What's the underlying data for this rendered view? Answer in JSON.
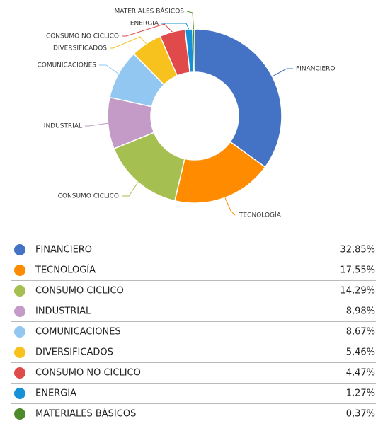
{
  "chart_data": {
    "type": "donut",
    "categories": [
      "FINANCIERO",
      "TECNOLOGÍA",
      "CONSUMO CICLICO",
      "INDUSTRIAL",
      "COMUNICACIONES",
      "DIVERSIFICADOS",
      "CONSUMO NO CICLICO",
      "ENERGIA",
      "MATERIALES BÁSICOS"
    ],
    "values": [
      32.85,
      17.55,
      14.29,
      8.98,
      8.67,
      5.46,
      4.47,
      1.27,
      0.37
    ],
    "value_labels": [
      "32,85%",
      "17,55%",
      "14,29%",
      "8,98%",
      "8,67%",
      "5,46%",
      "4,47%",
      "1,27%",
      "0,37%"
    ],
    "colors": [
      "#4472c4",
      "#ff8c00",
      "#a5c050",
      "#c39bc6",
      "#92c7f2",
      "#f7c21e",
      "#e04a4a",
      "#1591d8",
      "#4f8a2a"
    ]
  }
}
